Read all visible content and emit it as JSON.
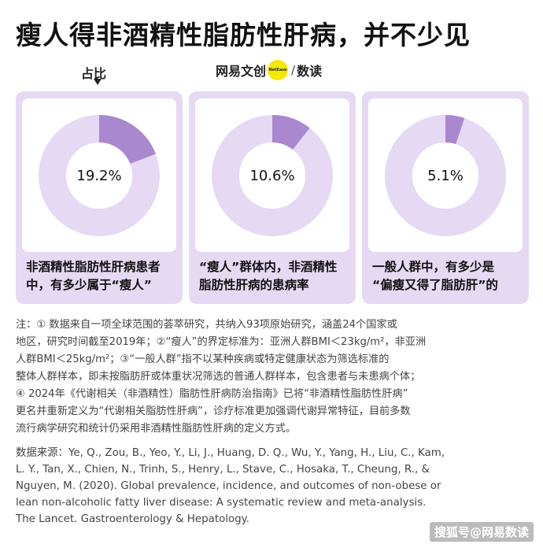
{
  "title": "瘦人得非酒精性脂肪性肝病，并不少见",
  "subhead": "占比",
  "brand": {
    "name": "网易文创",
    "dot": "NetEase",
    "slash": "/",
    "sub": "数读"
  },
  "colors": {
    "accent": "#a988cf",
    "track": "#e6d9f4",
    "card_bg": "#e6d9f4"
  },
  "chart_data": [
    {
      "type": "pie",
      "label": "19.2%",
      "values": [
        19.2,
        80.8
      ],
      "caption_lines": [
        "非酒精性脂肪性肝病患者",
        "中，有多少属于“瘦人”"
      ]
    },
    {
      "type": "pie",
      "label": "10.6%",
      "values": [
        10.6,
        89.4
      ],
      "caption_lines": [
        "“瘦人”群体内，非酒精性",
        "脂肪性肝病的患病率"
      ]
    },
    {
      "type": "pie",
      "label": "5.1%",
      "values": [
        5.1,
        94.9
      ],
      "caption_lines": [
        "一般人群中，有多少是",
        "“偏瘦又得了脂肪肝”的"
      ]
    }
  ],
  "notes": [
    "注：① 数据来自一项全球范围的荟萃研究，共纳入93项原始研究，涵盖24个国家或",
    "地区，研究时间截至2019年；②“瘦人”的界定标准为：亚洲人群BMI＜23kg/m²，非亚洲",
    "人群BMI＜25kg/m²；③“一般人群”指不以某种疾病或特定健康状态为筛选标准的",
    "整体人群样本，即未按脂肪肝或体重状况筛选的普通人群样本，包含患者与未患病个体；",
    "④ 2024年《代谢相关（非酒精性）脂肪性肝病防治指南》已将“非酒精性脂肪性肝病”",
    "更名并重新定义为“代谢相关脂肪性肝病”，诊疗标准更加强调代谢异常特征，目前多数",
    "流行病学研究和统计仍采用非酒精性脂肪性肝病的定义方式。"
  ],
  "source": [
    "数据来源：Ye, Q., Zou, B., Yeo, Y., Li, J., Huang, D. Q., Wu, Y., Yang, H., Liu, C., Kam,",
    "L. Y., Tan, X., Chien, N., Trinh, S., Henry, L., Stave, C., Hosaka, T., Cheung, R., &",
    "Nguyen, M. (2020). Global prevalence, incidence, and outcomes of non-obese or",
    "lean non-alcoholic fatty liver disease: A systematic review and meta-analysis.",
    "The Lancet. Gastroenterology & Hepatology."
  ],
  "watermark": "搜狐号@网易数读"
}
